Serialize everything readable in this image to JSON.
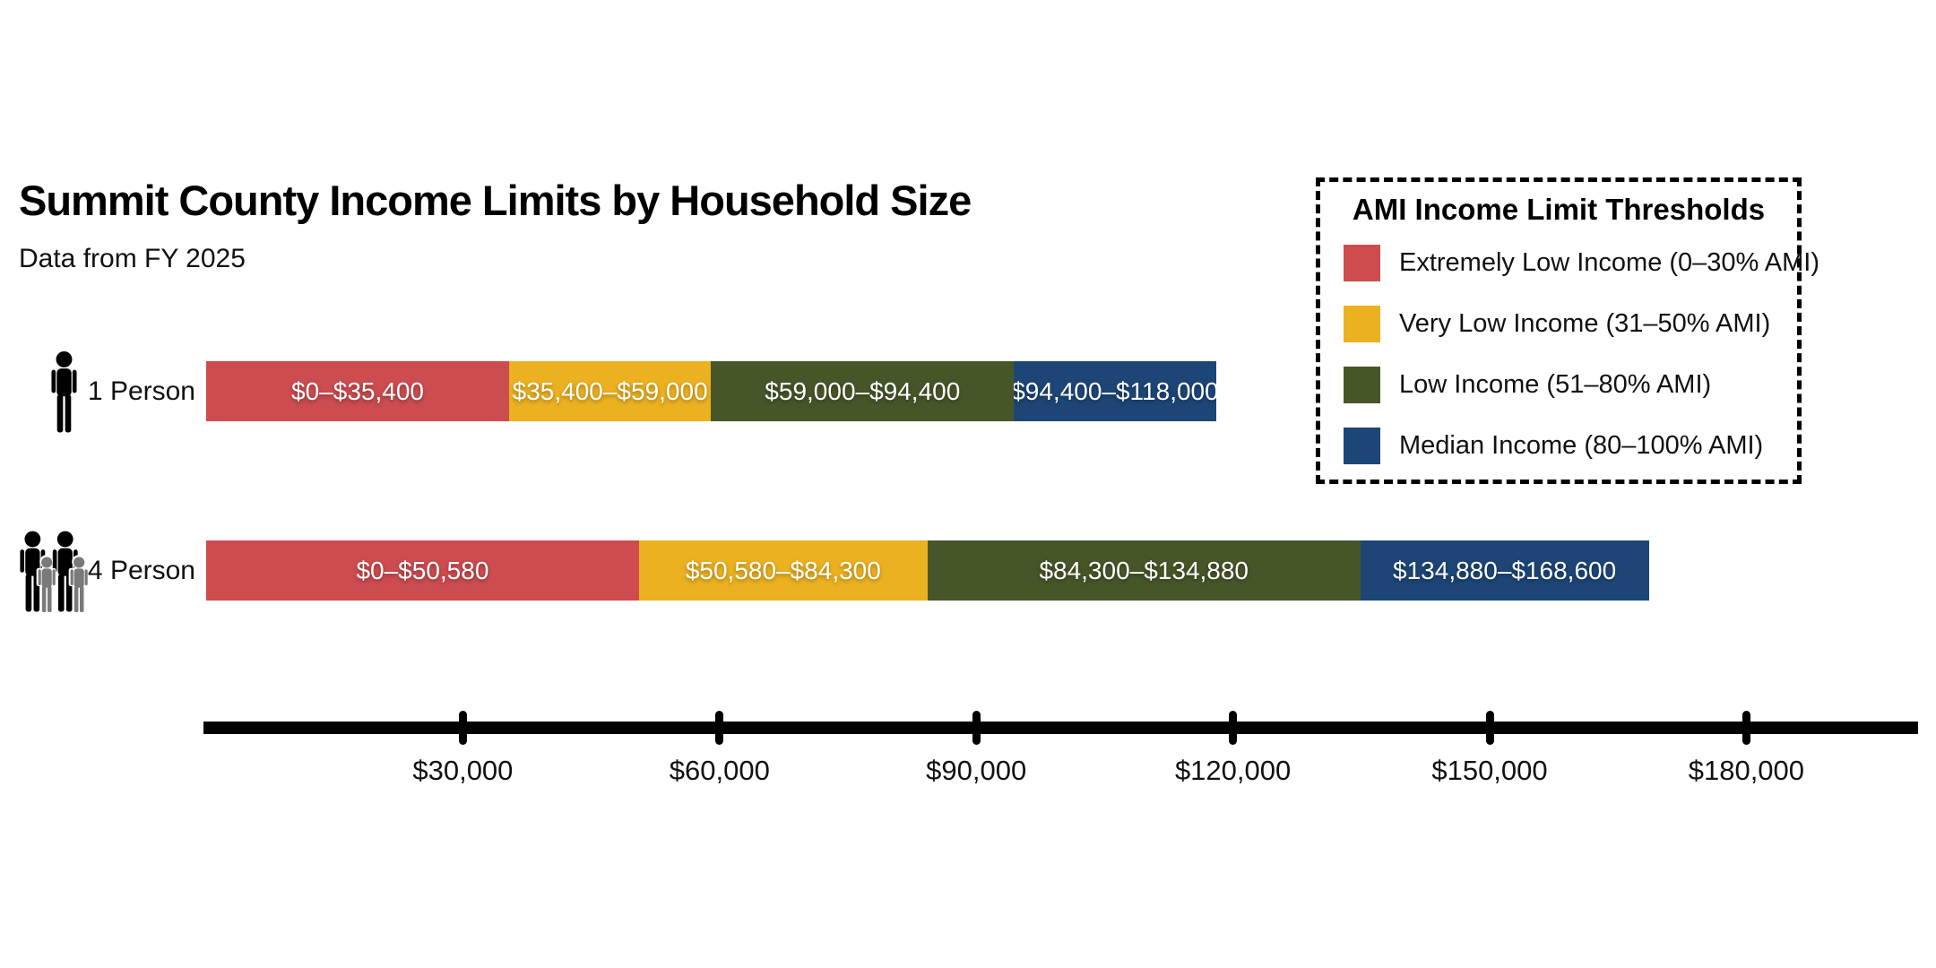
{
  "title": "Summit County Income Limits by Household Size",
  "subtitle": "Data from FY 2025",
  "legend": {
    "title": "AMI Income Limit Thresholds",
    "items": [
      {
        "label": "Extremely Low Income (0–30% AMI)",
        "color": "#CC4C50"
      },
      {
        "label": "Very Low Income (31–50% AMI)",
        "color": "#EBB121"
      },
      {
        "label": "Low Income (51–80% AMI)",
        "color": "#475629"
      },
      {
        "label": "Median Income (80–100% AMI)",
        "color": "#1D4677"
      }
    ]
  },
  "chart_data": {
    "type": "bar",
    "orientation": "horizontal",
    "stacked": true,
    "title": "Summit County Income Limits by Household Size",
    "subtitle": "Data from FY 2025",
    "categories": [
      "1 Person",
      "4 Person"
    ],
    "legend_position": "top-right",
    "grid": false,
    "x_axis": {
      "min": 0,
      "max": 200000,
      "ticks": [
        {
          "value": 30000,
          "label": "$30,000"
        },
        {
          "value": 60000,
          "label": "$60,000"
        },
        {
          "value": 90000,
          "label": "$90,000"
        },
        {
          "value": 120000,
          "label": "$120,000"
        },
        {
          "value": 150000,
          "label": "$150,000"
        },
        {
          "value": 180000,
          "label": "$180,000"
        }
      ]
    },
    "rows": [
      {
        "category": "1 Person",
        "icon": "person-icon",
        "segments": [
          {
            "series": "Extremely Low Income (0–30% AMI)",
            "color": "#CC4C50",
            "from": 0,
            "to": 35400,
            "label": "$0–$35,400"
          },
          {
            "series": "Very Low Income (31–50% AMI)",
            "color": "#EBB121",
            "from": 35400,
            "to": 59000,
            "label": "$35,400–$59,000"
          },
          {
            "series": "Low Income (51–80% AMI)",
            "color": "#475629",
            "from": 59000,
            "to": 94400,
            "label": "$59,000–$94,400"
          },
          {
            "series": "Median Income (80–100% AMI)",
            "color": "#1D4677",
            "from": 94400,
            "to": 118000,
            "label": "$94,400–$118,000"
          }
        ]
      },
      {
        "category": "4 Person",
        "icon": "family-icon",
        "segments": [
          {
            "series": "Extremely Low Income (0–30% AMI)",
            "color": "#CC4C50",
            "from": 0,
            "to": 50580,
            "label": "$0–$50,580"
          },
          {
            "series": "Very Low Income (31–50% AMI)",
            "color": "#EBB121",
            "from": 50580,
            "to": 84300,
            "label": "$50,580–$84,300"
          },
          {
            "series": "Low Income (51–80% AMI)",
            "color": "#475629",
            "from": 84300,
            "to": 134880,
            "label": "$84,300–$134,880"
          },
          {
            "series": "Median Income (80–100% AMI)",
            "color": "#1D4677",
            "from": 134880,
            "to": 168600,
            "label": "$134,880–$168,600"
          }
        ]
      }
    ]
  }
}
